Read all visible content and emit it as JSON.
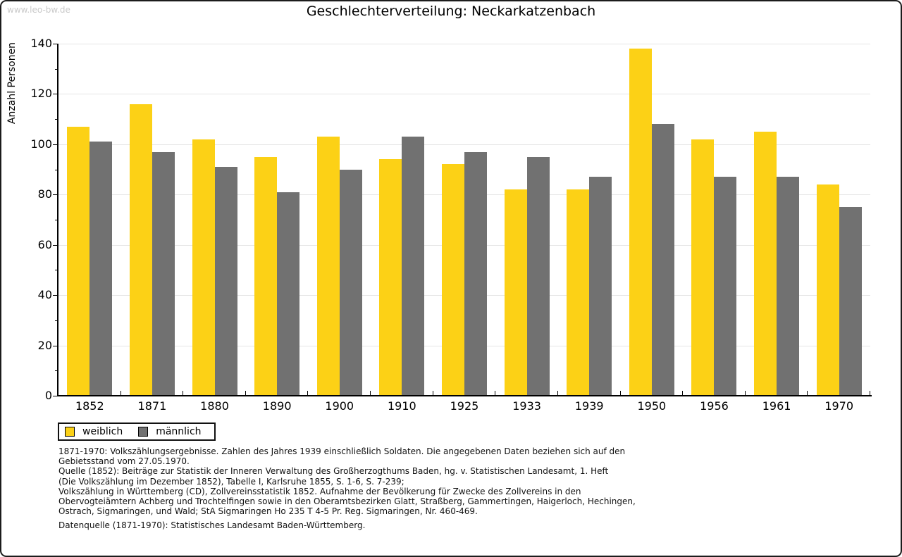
{
  "watermark": "www.leo-bw.de",
  "chart_data": {
    "type": "bar",
    "title": "Geschlechterverteilung: Neckarkatzenbach",
    "ylabel": "Anzahl Personen",
    "xlabel": "",
    "categories": [
      "1852",
      "1871",
      "1880",
      "1890",
      "1900",
      "1910",
      "1925",
      "1933",
      "1939",
      "1950",
      "1956",
      "1961",
      "1970"
    ],
    "series": [
      {
        "name": "weiblich",
        "color": "#fcd116",
        "values": [
          107,
          116,
          102,
          95,
          103,
          94,
          92,
          82,
          82,
          138,
          102,
          105,
          84
        ]
      },
      {
        "name": "männlich",
        "color": "#717171",
        "values": [
          101,
          97,
          91,
          81,
          90,
          103,
          97,
          95,
          87,
          108,
          87,
          87,
          75
        ]
      }
    ],
    "ylim": [
      0,
      140
    ],
    "ytick_major": 20,
    "ytick_minor": 10,
    "grid": "horizontal-major",
    "gridline_color": "#e5e5e5",
    "legend_position": "bottom-left"
  },
  "footer": {
    "lines": [
      "1871-1970: Volkszählungsergebnisse. Zahlen des Jahres 1939 einschließlich Soldaten. Die angegebenen Daten beziehen sich auf den",
      "Gebietsstand vom 27.05.1970.",
      "Quelle (1852): Beiträge zur Statistik der Inneren Verwaltung des Großherzogthums Baden, hg. v. Statistischen Landesamt, 1. Heft",
      "(Die Volkszählung im Dezember 1852), Tabelle I, Karlsruhe 1855, S. 1-6, S. 7-239;",
      "Volkszählung in Württemberg (CD), Zollvereinsstatistik 1852. Aufnahme der Bevölkerung für Zwecke des Zollvereins in den",
      "Obervogteiämtern Achberg und Trochtelfingen sowie in den Oberamtsbezirken Glatt, Straßberg, Gammertingen, Haigerloch, Hechingen,",
      "Ostrach, Sigmaringen, und Wald; StA Sigmaringen Ho 235 T 4-5 Pr. Reg. Sigmaringen, Nr. 460-469."
    ],
    "datasource": "Datenquelle (1871-1970): Statistisches Landesamt Baden-Württemberg."
  }
}
